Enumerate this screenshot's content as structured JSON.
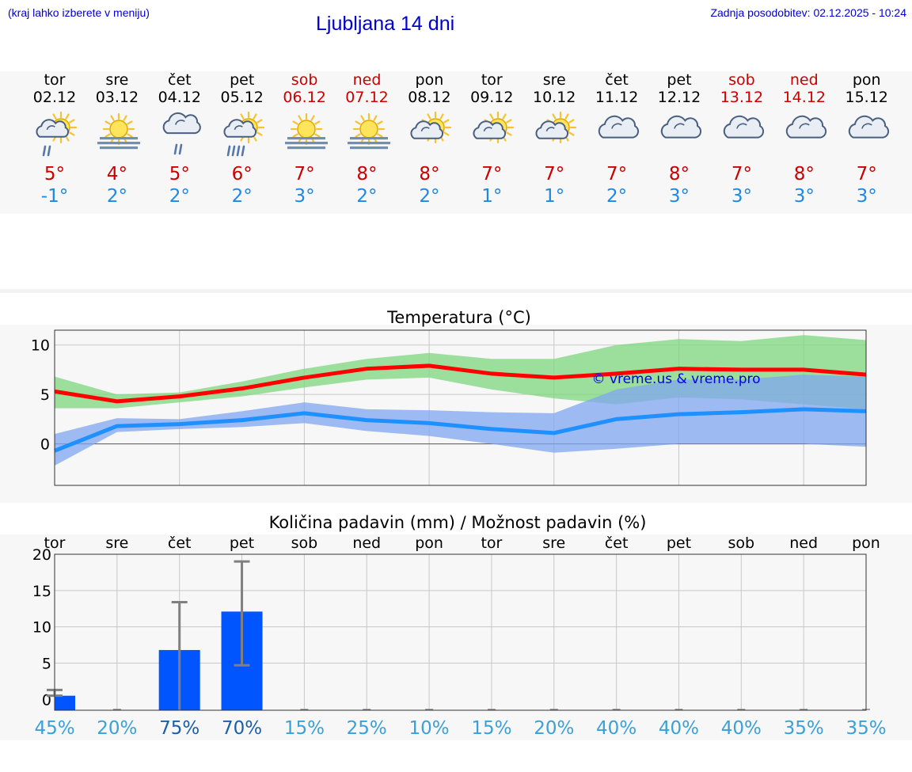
{
  "header": {
    "left_note": "(kraj lahko izberete v meniju)",
    "title": "Ljubljana 14 dni",
    "updated": "Zadnja posodobitev: 02.12.2025 - 10:24"
  },
  "colors": {
    "max_line": "#ff0000",
    "min_line": "#1e90ff",
    "max_band": "#7ed67e",
    "min_band": "#7fa6f0",
    "precip_bar": "#0055ff",
    "weekend": "#cc0000"
  },
  "days": [
    {
      "name": "tor",
      "date": "02.12",
      "weekend": false,
      "icon": "sun-cloud-drizzle-icon",
      "tmax": "5°",
      "tmin": "-1°"
    },
    {
      "name": "sre",
      "date": "03.12",
      "weekend": false,
      "icon": "sun-fog-icon",
      "tmax": "4°",
      "tmin": "2°"
    },
    {
      "name": "čet",
      "date": "04.12",
      "weekend": false,
      "icon": "cloud-drizzle-icon",
      "tmax": "5°",
      "tmin": "2°"
    },
    {
      "name": "pet",
      "date": "05.12",
      "weekend": false,
      "icon": "sun-cloud-rain-icon",
      "tmax": "6°",
      "tmin": "2°"
    },
    {
      "name": "sob",
      "date": "06.12",
      "weekend": true,
      "icon": "sun-fog-icon",
      "tmax": "7°",
      "tmin": "3°"
    },
    {
      "name": "ned",
      "date": "07.12",
      "weekend": true,
      "icon": "sun-fog-icon",
      "tmax": "8°",
      "tmin": "2°"
    },
    {
      "name": "pon",
      "date": "08.12",
      "weekend": false,
      "icon": "sun-cloud-icon",
      "tmax": "8°",
      "tmin": "2°"
    },
    {
      "name": "tor",
      "date": "09.12",
      "weekend": false,
      "icon": "sun-cloud-icon",
      "tmax": "7°",
      "tmin": "1°"
    },
    {
      "name": "sre",
      "date": "10.12",
      "weekend": false,
      "icon": "sun-cloud-icon",
      "tmax": "7°",
      "tmin": "1°"
    },
    {
      "name": "čet",
      "date": "11.12",
      "weekend": false,
      "icon": "cloud-icon",
      "tmax": "7°",
      "tmin": "2°"
    },
    {
      "name": "pet",
      "date": "12.12",
      "weekend": false,
      "icon": "cloud-icon",
      "tmax": "8°",
      "tmin": "3°"
    },
    {
      "name": "sob",
      "date": "13.12",
      "weekend": true,
      "icon": "cloud-icon",
      "tmax": "7°",
      "tmin": "3°"
    },
    {
      "name": "ned",
      "date": "14.12",
      "weekend": true,
      "icon": "cloud-icon",
      "tmax": "8°",
      "tmin": "3°"
    },
    {
      "name": "pon",
      "date": "15.12",
      "weekend": false,
      "icon": "cloud-icon",
      "tmax": "7°",
      "tmin": "3°"
    }
  ],
  "chart_data": [
    {
      "type": "line",
      "title": "Temperatura (°C)",
      "xlabel": "",
      "ylabel": "",
      "ylim": [
        -4.2,
        11.5
      ],
      "yticks": [
        0,
        5,
        10
      ],
      "grid": true,
      "x": [
        1,
        2,
        3,
        4,
        5,
        6,
        7,
        8,
        9,
        10,
        11,
        12,
        13,
        14
      ],
      "series": [
        {
          "values": [
            5.3,
            4.3,
            4.8,
            5.6,
            6.7,
            7.6,
            7.9,
            7.1,
            6.7,
            7.1,
            7.6,
            7.5,
            7.5,
            7.0
          ],
          "band_low": [
            3.6,
            3.6,
            4.2,
            4.8,
            5.7,
            6.5,
            6.7,
            5.5,
            4.6,
            4.0,
            4.7,
            4.5,
            4.0,
            3.5
          ],
          "band_high": [
            6.8,
            5.0,
            5.2,
            6.3,
            7.6,
            8.6,
            9.2,
            8.6,
            8.6,
            10.0,
            10.6,
            10.4,
            11.0,
            10.5
          ]
        },
        {
          "values": [
            -0.7,
            1.8,
            2.0,
            2.4,
            3.1,
            2.4,
            2.1,
            1.5,
            1.1,
            2.5,
            3.0,
            3.2,
            3.5,
            3.3
          ],
          "band_low": [
            -2.2,
            1.2,
            1.5,
            1.7,
            2.1,
            1.3,
            0.8,
            0.0,
            -0.9,
            -0.5,
            0.0,
            0.0,
            0.0,
            -0.3
          ],
          "band_high": [
            1.0,
            2.6,
            2.5,
            3.3,
            4.2,
            3.5,
            3.4,
            3.2,
            3.1,
            5.5,
            6.5,
            6.5,
            7.0,
            6.8
          ]
        }
      ],
      "watermark": "© vreme.us & vreme.pro"
    },
    {
      "type": "bar",
      "title": "Količina padavin (mm) / Možnost padavin (%)",
      "xlabel": "",
      "ylabel": "",
      "categories": [
        "tor",
        "sre",
        "čet",
        "pet",
        "sob",
        "ned",
        "pon",
        "tor",
        "sre",
        "čet",
        "pet",
        "sob",
        "ned",
        "pon"
      ],
      "ylim": [
        -1.5,
        20
      ],
      "yticks": [
        0,
        5,
        10,
        15,
        20
      ],
      "grid": true,
      "values": [
        0.5,
        0,
        6.8,
        12.1,
        0,
        0,
        0,
        0,
        0,
        0,
        0,
        0,
        0,
        0
      ],
      "error_low": [
        0.5,
        0,
        -1.5,
        4.7,
        0,
        0,
        0,
        0,
        0,
        0,
        0,
        0,
        0,
        0
      ],
      "error_high": [
        1.3,
        0,
        13.4,
        19.0,
        0,
        0,
        0,
        0,
        0,
        0,
        0,
        0,
        0,
        0
      ],
      "probabilities": [
        "45%",
        "20%",
        "75%",
        "70%",
        "15%",
        "25%",
        "10%",
        "15%",
        "20%",
        "40%",
        "40%",
        "40%",
        "35%",
        "35%"
      ]
    }
  ]
}
